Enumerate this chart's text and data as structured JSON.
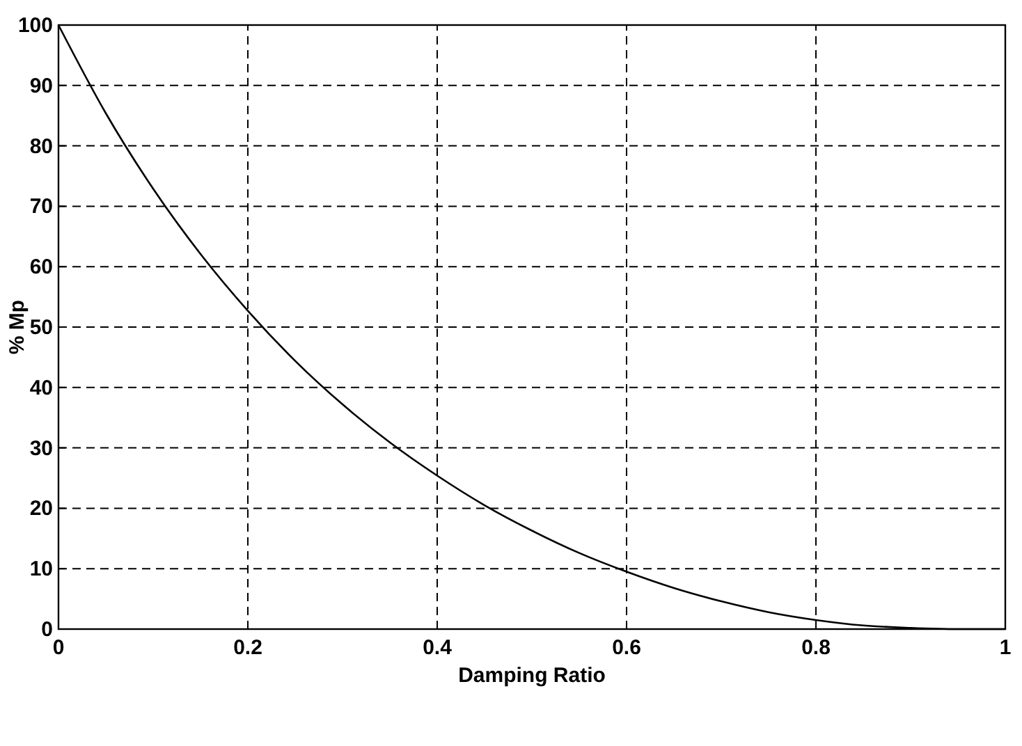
{
  "chart_data": {
    "type": "line",
    "xlabel": "Damping Ratio",
    "ylabel": "% Mp",
    "x": [
      0,
      0.05,
      0.1,
      0.15,
      0.2,
      0.25,
      0.3,
      0.35,
      0.4,
      0.45,
      0.5,
      0.55,
      0.6,
      0.65,
      0.7,
      0.75,
      0.8,
      0.85,
      0.9,
      0.95,
      1
    ],
    "series": [
      {
        "color": "#000000",
        "values": [
          100,
          85.4,
          72.9,
          62.1,
          52.7,
          44.4,
          37.2,
          30.9,
          25.4,
          20.5,
          16.3,
          12.6,
          9.5,
          6.8,
          4.6,
          2.8,
          1.5,
          0.6,
          0.2,
          0,
          0
        ]
      }
    ],
    "xlim": [
      0,
      1
    ],
    "ylim": [
      0,
      100
    ],
    "xticks": [
      0,
      0.2,
      0.4,
      0.6,
      0.8,
      1
    ],
    "yticks": [
      0,
      10,
      20,
      30,
      40,
      50,
      60,
      70,
      80,
      90,
      100
    ],
    "grid": true,
    "line_style": "solid",
    "marker": "none"
  }
}
